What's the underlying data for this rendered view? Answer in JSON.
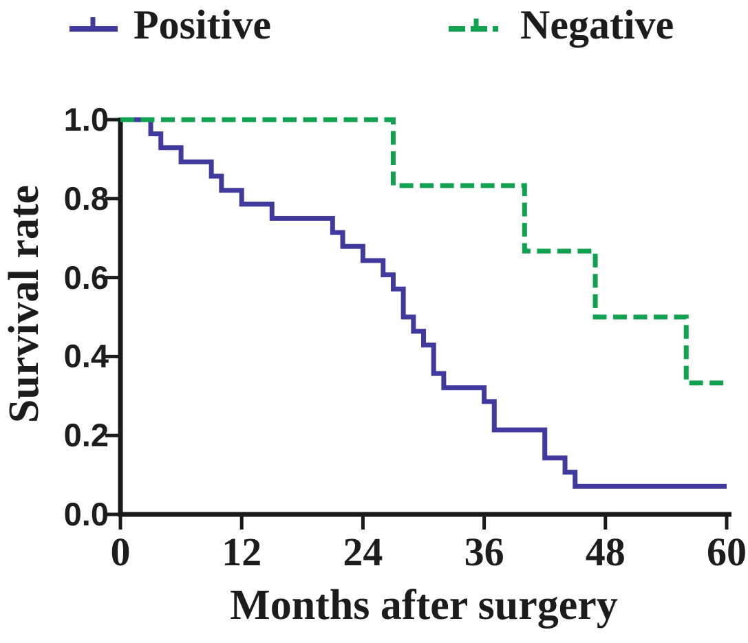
{
  "legend": {
    "items": [
      {
        "label": "Positive",
        "marker": "solid-line-with-censor-tick-icon"
      },
      {
        "label": "Negative",
        "marker": "dashed-line-with-censor-tick-icon"
      }
    ]
  },
  "colors": {
    "positive_line": "#413a9e",
    "negative_line": "#10a24f",
    "axis": "#1a1a1a",
    "text": "#1c1c1c",
    "background": "#ffffff"
  },
  "chart_data": {
    "type": "line",
    "subtype": "kaplan-meier-step",
    "title": "",
    "xlabel": "Months after surgery",
    "ylabel": "Survival rate",
    "xlim": [
      0,
      60
    ],
    "ylim": [
      0.0,
      1.0
    ],
    "xticks": [
      0,
      12,
      24,
      36,
      48,
      60
    ],
    "yticks": [
      0.0,
      0.2,
      0.4,
      0.6,
      0.8,
      1.0
    ],
    "grid": false,
    "legend_position": "top",
    "series": [
      {
        "name": "Positive",
        "color": "#413a9e",
        "line_style": "solid",
        "start": [
          0,
          1.0
        ],
        "drops": [
          [
            3,
            0.964
          ],
          [
            4,
            0.929
          ],
          [
            6,
            0.893
          ],
          [
            9,
            0.857
          ],
          [
            10,
            0.821
          ],
          [
            12,
            0.786
          ],
          [
            15,
            0.75
          ],
          [
            21,
            0.714
          ],
          [
            22,
            0.679
          ],
          [
            24,
            0.643
          ],
          [
            26,
            0.607
          ],
          [
            27,
            0.571
          ],
          [
            28,
            0.5
          ],
          [
            29,
            0.464
          ],
          [
            30,
            0.429
          ],
          [
            31,
            0.357
          ],
          [
            32,
            0.321
          ],
          [
            36,
            0.286
          ],
          [
            37,
            0.214
          ],
          [
            42,
            0.143
          ],
          [
            44,
            0.107
          ],
          [
            45,
            0.071
          ]
        ],
        "end_x": 60
      },
      {
        "name": "Negative",
        "color": "#10a24f",
        "line_style": "dashed",
        "start": [
          0,
          1.0
        ],
        "drops": [
          [
            27,
            0.833
          ],
          [
            40,
            0.667
          ],
          [
            47,
            0.5
          ],
          [
            56,
            0.333
          ]
        ],
        "end_x": 60
      }
    ]
  }
}
